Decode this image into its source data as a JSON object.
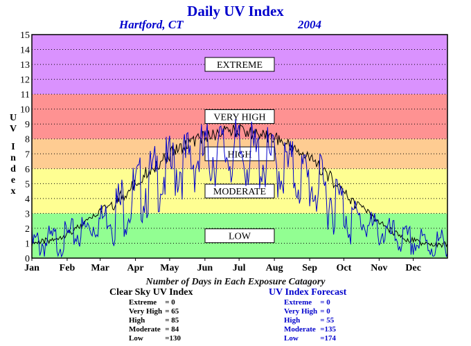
{
  "header": {
    "title": "Daily UV Index",
    "location": "Hartford, CT",
    "year": "2004"
  },
  "ylabel_letters": [
    "U",
    "V",
    "I",
    "n",
    "d",
    "e",
    "x"
  ],
  "caption": "Number of Days in Each Exposure Catagory",
  "stats": {
    "clear": {
      "title": "Clear Sky UV Index",
      "rows": [
        {
          "label": "Extreme",
          "value": "=    0"
        },
        {
          "label": "Very High",
          "value": "= 65"
        },
        {
          "label": "High",
          "value": "= 85"
        },
        {
          "label": "Moderate",
          "value": "= 84"
        },
        {
          "label": "Low",
          "value": "=130"
        }
      ]
    },
    "forecast": {
      "title": "UV Index Forecast",
      "rows": [
        {
          "label": "Extreme",
          "value": "=    0"
        },
        {
          "label": "Very High",
          "value": "=    0"
        },
        {
          "label": "High",
          "value": "= 55"
        },
        {
          "label": "Moderate",
          "value": "=135"
        },
        {
          "label": "Low",
          "value": "=174"
        }
      ]
    }
  },
  "colors": {
    "extreme": "#da92fe",
    "very_high": "#fe9292",
    "high": "#fecc92",
    "moderate": "#fefe92",
    "low": "#92fe92",
    "clear_sky_line": "#000000",
    "forecast_line": "#0000cc"
  },
  "chart_data": {
    "type": "line",
    "title": "Daily UV Index",
    "xlabel": "",
    "ylabel": "UV Index",
    "ylim": [
      0,
      15
    ],
    "xlim": [
      1,
      366
    ],
    "grid": true,
    "y_ticks": [
      0,
      1,
      2,
      3,
      4,
      5,
      6,
      7,
      8,
      9,
      10,
      11,
      12,
      13,
      14,
      15
    ],
    "x_tick_labels": [
      "Jan",
      "Feb",
      "Mar",
      "Apr",
      "May",
      "Jun",
      "Jul",
      "Aug",
      "Sep",
      "Oct",
      "Nov",
      "Dec"
    ],
    "x_tick_days": [
      1,
      32,
      61,
      92,
      122,
      153,
      183,
      214,
      245,
      275,
      306,
      336
    ],
    "bands": [
      {
        "label": "LOW",
        "from": 0,
        "to": 3
      },
      {
        "label": "MODERATE",
        "from": 3,
        "to": 6
      },
      {
        "label": "HIGH",
        "from": 6,
        "to": 8
      },
      {
        "label": "VERY HIGH",
        "from": 8,
        "to": 11
      },
      {
        "label": "EXTREME",
        "from": 11,
        "to": 15
      }
    ],
    "series": [
      {
        "name": "Clear Sky UV Index",
        "x": [
          1,
          10,
          20,
          30,
          40,
          50,
          60,
          70,
          80,
          90,
          100,
          110,
          120,
          130,
          140,
          150,
          160,
          170,
          180,
          190,
          200,
          210,
          220,
          230,
          240,
          250,
          260,
          270,
          280,
          290,
          300,
          310,
          320,
          330,
          340,
          350,
          360,
          366
        ],
        "values": [
          1.2,
          1.3,
          1.5,
          1.8,
          2.2,
          2.7,
          3.3,
          3.9,
          4.6,
          5.3,
          6.1,
          6.7,
          7.3,
          7.8,
          8.2,
          8.5,
          8.7,
          8.9,
          9.0,
          8.9,
          8.8,
          8.6,
          8.3,
          7.9,
          7.4,
          6.8,
          6.1,
          5.3,
          4.5,
          3.7,
          3.0,
          2.4,
          1.9,
          1.5,
          1.3,
          1.1,
          1.1,
          1.2
        ]
      },
      {
        "name": "UV Index Forecast",
        "x": [
          1,
          10,
          20,
          30,
          40,
          50,
          60,
          70,
          80,
          90,
          100,
          110,
          120,
          130,
          140,
          150,
          160,
          170,
          180,
          190,
          200,
          210,
          220,
          230,
          240,
          250,
          260,
          270,
          280,
          290,
          300,
          310,
          320,
          330,
          340,
          350,
          360,
          366
        ],
        "values": [
          0.9,
          1.0,
          1.1,
          1.3,
          1.6,
          2.0,
          2.5,
          3.0,
          3.5,
          4.1,
          4.8,
          5.3,
          5.8,
          6.2,
          6.5,
          6.8,
          7.0,
          7.1,
          7.0,
          6.9,
          6.7,
          6.4,
          6.1,
          5.8,
          5.3,
          4.8,
          4.3,
          3.7,
          3.1,
          2.5,
          2.0,
          1.7,
          1.4,
          1.1,
          1.0,
          0.9,
          0.9,
          0.9
        ]
      }
    ]
  }
}
